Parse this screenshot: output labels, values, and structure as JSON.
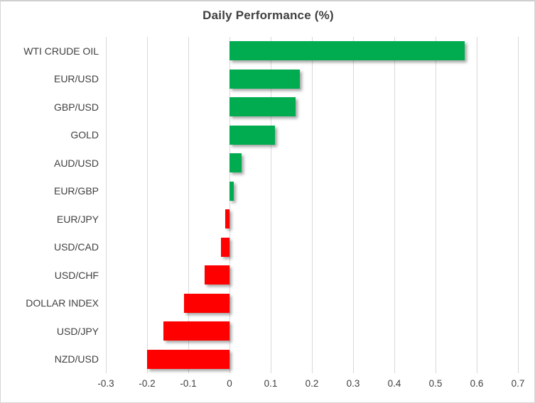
{
  "chart_data": {
    "type": "bar",
    "orientation": "horizontal",
    "title": "Daily Performance (%)",
    "categories": [
      "WTI CRUDE OIL",
      "EUR/USD",
      "GBP/USD",
      "GOLD",
      "AUD/USD",
      "EUR/GBP",
      "EUR/JPY",
      "USD/CAD",
      "USD/CHF",
      "DOLLAR INDEX",
      "USD/JPY",
      "NZD/USD"
    ],
    "values": [
      0.57,
      0.17,
      0.16,
      0.11,
      0.03,
      0.01,
      -0.01,
      -0.02,
      -0.06,
      -0.11,
      -0.16,
      -0.2
    ],
    "xlim": [
      -0.3,
      0.7
    ],
    "x_ticks": [
      -0.3,
      -0.2,
      -0.1,
      0,
      0.1,
      0.2,
      0.3,
      0.4,
      0.5,
      0.6,
      0.7
    ],
    "x_tick_labels": [
      "-0.3",
      "-0.2",
      "-0.1",
      "0",
      "0.1",
      "0.2",
      "0.3",
      "0.4",
      "0.5",
      "0.6",
      "0.7"
    ],
    "grid": true,
    "legend": "none",
    "colors": {
      "positive": "#00AC4F",
      "negative": "#FF0000",
      "gridline": "#D9D9D9",
      "text": "#404040",
      "background": "#FFFFFF",
      "border": "#D6D6D6"
    }
  }
}
